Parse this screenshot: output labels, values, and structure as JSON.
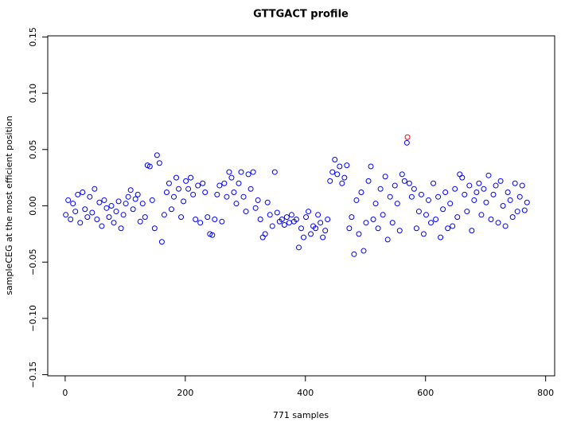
{
  "chart_data": {
    "type": "scatter",
    "title": "GTTGACT profile",
    "x_label": "771 samples",
    "y_label": "sampleCEG at the most efficient position",
    "xlim": [
      -29,
      815
    ],
    "ylim": [
      -0.151,
      0.151
    ],
    "xticks": [
      0,
      200,
      400,
      600,
      800
    ],
    "yticks": [
      {
        "value": -0.15,
        "label": "−0.15"
      },
      {
        "value": -0.1,
        "label": "−0.10"
      },
      {
        "value": -0.05,
        "label": "−0.05"
      },
      {
        "value": 0,
        "label": "0.00"
      },
      0.05,
      {
        "value": 0.1,
        "label": "0.10"
      },
      0.15
    ],
    "series": [
      {
        "color": "#0000ff",
        "x": [
          1,
          5,
          9,
          13,
          17,
          21,
          25,
          29,
          33,
          37,
          41,
          45,
          49,
          53,
          57,
          61,
          65,
          69,
          73,
          77,
          81,
          85,
          89,
          93,
          97,
          101,
          105,
          109,
          113,
          117,
          121,
          125,
          129,
          133,
          137,
          141,
          145,
          149,
          153,
          157,
          161,
          165,
          169,
          173,
          177,
          181,
          185,
          189,
          193,
          197,
          201,
          205,
          209,
          213,
          217,
          221,
          225,
          229,
          233,
          237,
          241,
          245,
          249,
          253,
          257,
          261,
          265,
          269,
          273,
          277,
          281,
          285,
          289,
          293,
          297,
          301,
          305,
          309,
          313,
          317,
          321,
          325,
          329,
          333,
          337,
          341,
          345,
          349,
          353,
          357,
          361,
          365,
          369,
          373,
          377,
          381,
          385,
          389,
          393,
          397,
          401,
          405,
          409,
          413,
          417,
          421,
          425,
          429,
          433,
          437,
          441,
          445,
          449,
          453,
          457,
          461,
          465,
          469,
          473,
          477,
          481,
          485,
          489,
          493,
          497,
          501,
          505,
          509,
          513,
          517,
          521,
          525,
          529,
          533,
          537,
          541,
          545,
          549,
          553,
          557,
          561,
          565,
          569,
          573,
          577,
          581,
          585,
          589,
          593,
          597,
          601,
          605,
          609,
          613,
          617,
          621,
          625,
          629,
          633,
          637,
          641,
          645,
          649,
          653,
          657,
          661,
          665,
          669,
          673,
          677,
          681,
          685,
          689,
          693,
          697,
          701,
          705,
          709,
          713,
          717,
          721,
          725,
          729,
          733,
          737,
          741,
          745,
          749,
          753,
          757,
          761,
          765,
          769
        ],
        "values": [
          -0.008,
          0.005,
          -0.012,
          0.002,
          -0.005,
          0.01,
          -0.015,
          0.012,
          -0.003,
          -0.01,
          0.008,
          -0.006,
          0.015,
          -0.012,
          0.003,
          -0.018,
          0.005,
          -0.002,
          -0.01,
          0.0,
          -0.015,
          -0.005,
          0.004,
          -0.02,
          -0.008,
          0.002,
          0.008,
          0.014,
          -0.003,
          0.006,
          0.01,
          -0.014,
          0.002,
          -0.01,
          0.036,
          0.035,
          0.005,
          -0.02,
          0.045,
          0.038,
          -0.032,
          -0.008,
          0.012,
          0.02,
          -0.003,
          0.008,
          0.025,
          0.015,
          -0.01,
          0.004,
          0.022,
          0.015,
          0.025,
          0.01,
          -0.012,
          0.018,
          -0.015,
          0.02,
          0.012,
          -0.01,
          -0.025,
          -0.026,
          -0.012,
          0.01,
          0.018,
          -0.014,
          0.02,
          0.008,
          0.03,
          0.025,
          0.012,
          0.002,
          0.02,
          0.03,
          0.008,
          -0.005,
          0.028,
          0.015,
          0.03,
          -0.002,
          0.005,
          -0.012,
          -0.028,
          -0.025,
          0.003,
          -0.008,
          -0.018,
          0.03,
          -0.006,
          -0.014,
          -0.012,
          -0.017,
          -0.01,
          -0.015,
          -0.008,
          -0.014,
          -0.012,
          -0.037,
          -0.02,
          -0.028,
          -0.01,
          -0.005,
          -0.025,
          -0.018,
          -0.02,
          -0.008,
          -0.015,
          -0.028,
          -0.022,
          -0.012,
          0.022,
          0.03,
          0.041,
          0.028,
          0.035,
          0.02,
          0.025,
          0.036,
          -0.02,
          -0.01,
          -0.043,
          0.005,
          -0.025,
          0.012,
          -0.04,
          -0.015,
          0.022,
          0.035,
          -0.012,
          0.002,
          -0.02,
          0.015,
          -0.008,
          0.026,
          -0.03,
          0.008,
          -0.015,
          0.018,
          0.002,
          -0.022,
          0.028,
          0.022,
          0.056,
          0.02,
          0.008,
          0.015,
          -0.02,
          -0.005,
          0.01,
          -0.025,
          -0.008,
          0.005,
          -0.015,
          0.02,
          -0.012,
          0.008,
          -0.028,
          -0.003,
          0.012,
          -0.02,
          0.002,
          -0.018,
          0.015,
          -0.01,
          0.028,
          0.025,
          0.01,
          -0.005,
          0.018,
          -0.022,
          0.005,
          0.012,
          0.02,
          -0.008,
          0.015,
          0.003,
          0.027,
          -0.012,
          0.01,
          0.018,
          -0.015,
          0.022,
          0.0,
          -0.018,
          0.012,
          0.005,
          -0.01,
          0.02,
          -0.005,
          0.008,
          0.018,
          -0.004,
          0.003
        ]
      },
      {
        "color": "#ff0000",
        "x": [
          570
        ],
        "values": [
          0.061
        ]
      }
    ]
  }
}
